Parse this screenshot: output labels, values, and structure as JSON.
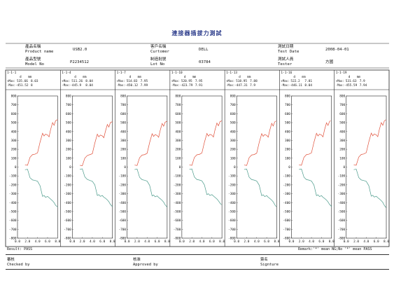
{
  "title": "連接器插拔力測試",
  "header": {
    "product_name_cn": "產品名稱",
    "product_name_en": "Product name",
    "product_name_value": "USB2.0",
    "customer_cn": "客戶名稱",
    "customer_en": "Curtomer",
    "customer_value": "DELL",
    "test_date_cn": "測試日期",
    "test_date_en": "Test Date",
    "test_date_value": "2008-04-01",
    "model_cn": "產品型號",
    "model_en": "Model No",
    "model_value": "P2234512",
    "lot_cn": "制造批號",
    "lot_en": "Lot No",
    "lot_value": "03784",
    "tester_cn": "測試人員",
    "tester_en": "Tester",
    "tester_value": "方國"
  },
  "footer": {
    "result": "Result:  PASS",
    "remark": "Remark:'*' mean NG;No '*' mean PASS",
    "checked_cn": "審核",
    "checked_en": "Checked by",
    "approved_cn": "核准",
    "approved_en": "Approved by",
    "signature_cn": "簽名",
    "signature_en": "Signture"
  },
  "chart_data": [
    {
      "type": "line",
      "id": "1-1-1",
      "header_unit_d": "d",
      "header_unit_mm": "mm",
      "max_label": "+Max:",
      "min_label": "-Max:",
      "max_values": [
        "535.66",
        "8.03"
      ],
      "min_values": [
        "-451.52",
        "8"
      ],
      "ylim": [
        -800,
        800
      ],
      "yticks": [
        800,
        700,
        600,
        500,
        400,
        300,
        200,
        100,
        0,
        -100,
        -200,
        -300,
        -400,
        -500,
        -600,
        -700,
        -800
      ],
      "xlim": [
        0,
        8
      ],
      "xticks": [
        "0.0",
        "2.0",
        "4.0",
        "6.0",
        "8.0"
      ],
      "series": [
        {
          "color": "#e0503a",
          "x": [
            1.5,
            2.0,
            2.5,
            3.0,
            3.5,
            4.0,
            4.5,
            5.0,
            5.3,
            5.6,
            6.0,
            6.3,
            6.6,
            7.0,
            7.3,
            7.6,
            8.0
          ],
          "values": [
            25,
            20,
            110,
            140,
            145,
            160,
            280,
            380,
            350,
            370,
            360,
            340,
            420,
            500,
            470,
            520,
            535
          ]
        },
        {
          "color": "#4a9a8a",
          "x": [
            1.5,
            2.0,
            2.5,
            3.0,
            3.5,
            4.0,
            4.5,
            5.0,
            5.3,
            5.6,
            6.0,
            6.3,
            6.6,
            7.0,
            7.3,
            7.6,
            8.0
          ],
          "values": [
            -30,
            -25,
            -120,
            -145,
            -150,
            -160,
            -210,
            -330,
            -320,
            -340,
            -330,
            -345,
            -360,
            -380,
            -400,
            -430,
            -450
          ]
        }
      ]
    },
    {
      "type": "line",
      "id": "1-1-4",
      "header_unit_d": "d",
      "header_unit_mm": "mm",
      "max_label": "+Max:",
      "min_label": "-Max:",
      "max_values": [
        "511.26",
        "8.04"
      ],
      "min_values": [
        "-445.9",
        "8.04"
      ],
      "ylim": [
        -800,
        800
      ],
      "yticks": [
        800,
        700,
        600,
        500,
        400,
        300,
        200,
        100,
        0,
        -100,
        -200,
        -300,
        -400,
        -500,
        -600,
        -700,
        -800
      ],
      "xlim": [
        0,
        8
      ],
      "xticks": [
        "0.0",
        "2.0",
        "4.0",
        "6.0",
        "8.0"
      ],
      "series": [
        {
          "color": "#e0503a",
          "x": [
            1.5,
            2.0,
            2.5,
            3.0,
            3.5,
            4.0,
            4.5,
            5.0,
            5.3,
            5.6,
            6.0,
            6.3,
            6.6,
            7.0,
            7.3,
            7.6,
            8.0
          ],
          "values": [
            20,
            15,
            100,
            130,
            140,
            150,
            270,
            370,
            340,
            360,
            350,
            330,
            400,
            480,
            450,
            500,
            511
          ]
        },
        {
          "color": "#4a9a8a",
          "x": [
            1.5,
            2.0,
            2.5,
            3.0,
            3.5,
            4.0,
            4.5,
            5.0,
            5.3,
            5.6,
            6.0,
            6.3,
            6.6,
            7.0,
            7.3,
            7.6,
            8.0
          ],
          "values": [
            -25,
            -20,
            -110,
            -140,
            -150,
            -160,
            -200,
            -320,
            -310,
            -330,
            -320,
            -340,
            -350,
            -370,
            -390,
            -420,
            -445
          ]
        }
      ]
    },
    {
      "type": "line",
      "id": "1-1-7",
      "header_unit_d": "d",
      "header_unit_mm": "mm",
      "max_label": "+Max:",
      "min_label": "-Max:",
      "max_values": [
        "514.83",
        "7.95"
      ],
      "min_values": [
        "-450.12",
        "7.99"
      ],
      "ylim": [
        -800,
        800
      ],
      "yticks": [
        800,
        700,
        600,
        500,
        400,
        300,
        200,
        100,
        0,
        -100,
        -200,
        -300,
        -400,
        -500,
        -600,
        -700,
        -800
      ],
      "xlim": [
        0,
        8
      ],
      "xticks": [
        "0.0",
        "2.0",
        "4.0",
        "6.0",
        "8.0"
      ],
      "series": [
        {
          "color": "#e0503a",
          "x": [
            1.5,
            2.0,
            2.5,
            3.0,
            3.5,
            4.0,
            4.5,
            5.0,
            5.3,
            5.6,
            6.0,
            6.3,
            6.6,
            7.0,
            7.3,
            7.6,
            7.95
          ],
          "values": [
            22,
            18,
            105,
            135,
            140,
            155,
            275,
            375,
            345,
            365,
            355,
            335,
            410,
            490,
            460,
            505,
            515
          ]
        },
        {
          "color": "#4a9a8a",
          "x": [
            1.5,
            2.0,
            2.5,
            3.0,
            3.5,
            4.0,
            4.5,
            5.0,
            5.3,
            5.6,
            6.0,
            6.3,
            6.6,
            7.0,
            7.3,
            7.6,
            7.99
          ],
          "values": [
            -28,
            -22,
            -115,
            -142,
            -148,
            -158,
            -205,
            -325,
            -315,
            -335,
            -325,
            -342,
            -355,
            -375,
            -395,
            -425,
            -450
          ]
        }
      ]
    },
    {
      "type": "line",
      "id": "1-1-10",
      "header_unit_d": "d",
      "header_unit_mm": "mm",
      "max_label": "+Max:",
      "min_label": "-Max:",
      "max_values": [
        "520.95",
        "7.95"
      ],
      "min_values": [
        "-423.79",
        "7.91"
      ],
      "ylim": [
        -800,
        800
      ],
      "yticks": [
        800,
        700,
        600,
        500,
        400,
        300,
        200,
        100,
        0,
        -100,
        -200,
        -300,
        -400,
        -500,
        -600,
        -700,
        -800
      ],
      "xlim": [
        0,
        8
      ],
      "xticks": [
        "0.0",
        "2.0",
        "4.0",
        "6.0",
        "8.0"
      ],
      "series": [
        {
          "color": "#e0503a",
          "x": [
            1.5,
            2.0,
            2.5,
            3.0,
            3.5,
            4.0,
            4.5,
            5.0,
            5.3,
            5.6,
            6.0,
            6.3,
            6.6,
            7.0,
            7.3,
            7.6,
            7.95
          ],
          "values": [
            24,
            19,
            108,
            138,
            143,
            158,
            278,
            378,
            348,
            368,
            358,
            338,
            415,
            495,
            465,
            510,
            521
          ]
        },
        {
          "color": "#4a9a8a",
          "x": [
            1.5,
            2.0,
            2.5,
            3.0,
            3.5,
            4.0,
            4.5,
            5.0,
            5.3,
            5.6,
            6.0,
            6.3,
            6.6,
            7.0,
            7.3,
            7.6,
            7.91
          ],
          "values": [
            -26,
            -21,
            -112,
            -140,
            -146,
            -155,
            -200,
            -310,
            -300,
            -320,
            -310,
            -325,
            -340,
            -360,
            -380,
            -405,
            -424
          ]
        }
      ]
    },
    {
      "type": "line",
      "id": "1-1-13",
      "header_unit_d": "d",
      "header_unit_mm": "mm",
      "max_label": "+Max:",
      "min_label": "-Max:",
      "max_values": [
        "518.95",
        "7.88"
      ],
      "min_values": [
        "-447.31",
        "7.9"
      ],
      "ylim": [
        -800,
        800
      ],
      "yticks": [
        800,
        700,
        600,
        500,
        400,
        300,
        200,
        100,
        0,
        -100,
        -200,
        -300,
        -400,
        -500,
        -600,
        -700,
        -800
      ],
      "xlim": [
        0,
        8
      ],
      "xticks": [
        "0.0",
        "2.0",
        "4.0",
        "6.0",
        "8.0"
      ],
      "series": [
        {
          "color": "#e0503a",
          "x": [
            1.5,
            2.0,
            2.5,
            3.0,
            3.5,
            4.0,
            4.5,
            5.0,
            5.3,
            5.6,
            6.0,
            6.3,
            6.6,
            7.0,
            7.3,
            7.6,
            7.88
          ],
          "values": [
            23,
            18,
            106,
            136,
            141,
            156,
            276,
            376,
            346,
            366,
            356,
            336,
            412,
            492,
            462,
            508,
            519
          ]
        },
        {
          "color": "#4a9a8a",
          "x": [
            1.5,
            2.0,
            2.5,
            3.0,
            3.5,
            4.0,
            4.5,
            5.0,
            5.3,
            5.6,
            6.0,
            6.3,
            6.6,
            7.0,
            7.3,
            7.6,
            7.9
          ],
          "values": [
            -27,
            -22,
            -114,
            -141,
            -147,
            -157,
            -203,
            -322,
            -312,
            -332,
            -322,
            -340,
            -352,
            -372,
            -392,
            -422,
            -447
          ]
        }
      ]
    },
    {
      "type": "line",
      "id": "1-1-16",
      "header_unit_d": "d",
      "header_unit_mm": "mm",
      "max_label": "+Max:",
      "min_label": "-Max:",
      "max_values": [
        "522.2",
        "7.81"
      ],
      "min_values": [
        "-446.11",
        "8.04"
      ],
      "ylim": [
        -800,
        800
      ],
      "yticks": [
        800,
        700,
        600,
        500,
        400,
        300,
        200,
        100,
        0,
        -100,
        -200,
        -300,
        -400,
        -500,
        -600,
        -700,
        -800
      ],
      "xlim": [
        0,
        8
      ],
      "xticks": [
        "0.0",
        "2.0",
        "4.0",
        "6.0",
        "8.0"
      ],
      "series": [
        {
          "color": "#e0503a",
          "x": [
            1.5,
            2.0,
            2.5,
            3.0,
            3.5,
            4.0,
            4.5,
            5.0,
            5.3,
            5.6,
            6.0,
            6.3,
            6.6,
            7.0,
            7.3,
            7.6,
            7.81
          ],
          "values": [
            25,
            20,
            110,
            140,
            145,
            160,
            280,
            380,
            350,
            370,
            360,
            340,
            418,
            498,
            468,
            512,
            522
          ]
        },
        {
          "color": "#4a9a8a",
          "x": [
            1.5,
            2.0,
            2.5,
            3.0,
            3.5,
            4.0,
            4.5,
            5.0,
            5.3,
            5.6,
            6.0,
            6.3,
            6.6,
            7.0,
            7.3,
            7.6,
            8.04
          ],
          "values": [
            -27,
            -22,
            -114,
            -141,
            -147,
            -157,
            -203,
            -322,
            -312,
            -332,
            -322,
            -340,
            -352,
            -372,
            -392,
            -420,
            -446
          ]
        }
      ]
    },
    {
      "type": "line",
      "id": "1-1-19",
      "header_unit_d": "d",
      "header_unit_mm": "mm",
      "max_label": "+Max:",
      "min_label": "-Max:",
      "max_values": [
        "531.63",
        "7.9"
      ],
      "min_values": [
        "-455.59",
        "7.94"
      ],
      "ylim": [
        -800,
        800
      ],
      "yticks": [
        800,
        700,
        600,
        500,
        400,
        300,
        200,
        100,
        0,
        -100,
        -200,
        -300,
        -400,
        -500,
        -600,
        -700,
        -800
      ],
      "xlim": [
        0,
        8
      ],
      "xticks": [
        "0.0",
        "2.0",
        "4.0",
        "6.0",
        "8.0"
      ],
      "series": [
        {
          "color": "#e0503a",
          "x": [
            1.5,
            2.0,
            2.5,
            3.0,
            3.5,
            4.0,
            4.5,
            5.0,
            5.3,
            5.6,
            6.0,
            6.3,
            6.6,
            7.0,
            7.3,
            7.6,
            7.9
          ],
          "values": [
            26,
            21,
            112,
            142,
            147,
            162,
            282,
            382,
            352,
            372,
            362,
            342,
            420,
            500,
            470,
            518,
            532
          ]
        },
        {
          "color": "#4a9a8a",
          "x": [
            1.5,
            2.0,
            2.5,
            3.0,
            3.5,
            4.0,
            4.5,
            5.0,
            5.3,
            5.6,
            6.0,
            6.3,
            6.6,
            7.0,
            7.3,
            7.6,
            7.94
          ],
          "values": [
            -29,
            -24,
            -118,
            -145,
            -151,
            -161,
            -208,
            -328,
            -318,
            -338,
            -328,
            -345,
            -358,
            -378,
            -398,
            -430,
            -456
          ]
        }
      ]
    }
  ]
}
